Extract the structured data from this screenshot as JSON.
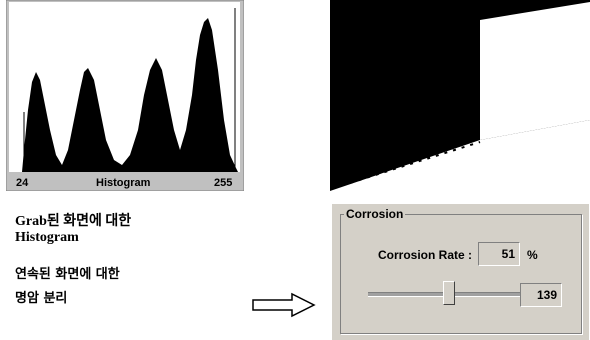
{
  "histogram": {
    "min_label": "24",
    "title": "Histogram",
    "max_label": "255"
  },
  "captions": [
    "Grab된 화면에 대한",
    "Histogram",
    "연속된 화면에 대한",
    "명암 분리"
  ],
  "corrosion": {
    "group_title": "Corrosion",
    "rate_label": "Corrosion Rate :",
    "rate_value": "51",
    "rate_unit": "%",
    "slider_value": "139"
  }
}
